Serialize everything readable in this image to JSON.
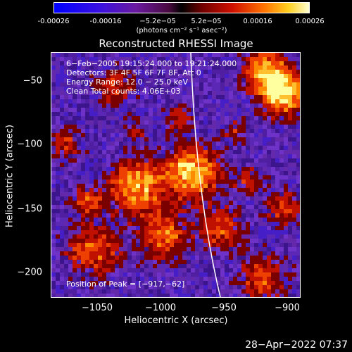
{
  "colorbar": {
    "ticks": [
      "-0.00026",
      "-0.00016",
      "−5.2e−05",
      "5.2e−05",
      "0.00016",
      "0.00026"
    ],
    "units": "(photons cm⁻² s⁻¹ asec⁻²)"
  },
  "title": "Reconstructed RHESSI Image",
  "info": {
    "time_range": "6−Feb−2005 19:15:24.000 to 19:21:24.000",
    "detectors": "Detectors: 3F 4F 5F 6F 7F 8F, Att 0",
    "energy": "Energy Range: 12.0 − 25.0 keV",
    "method": "Clean     Total counts: 4.06E+03",
    "peak": "Position of Peak = [−917,−62]"
  },
  "axes": {
    "xlabel": "Heliocentric X (arcsec)",
    "ylabel": "Heliocentric Y (arcsec)",
    "xticks": [
      "−1050",
      "−1000",
      "−950",
      "−900"
    ],
    "yticks": [
      "−50",
      "−100",
      "−150",
      "−200"
    ],
    "xlim": [
      -1077,
      -880
    ],
    "ylim": [
      -222,
      -28
    ]
  },
  "timestamp": "28−Apr−2022 07:37",
  "colors": {
    "frame": "#ffffff",
    "background": "#000000"
  }
}
